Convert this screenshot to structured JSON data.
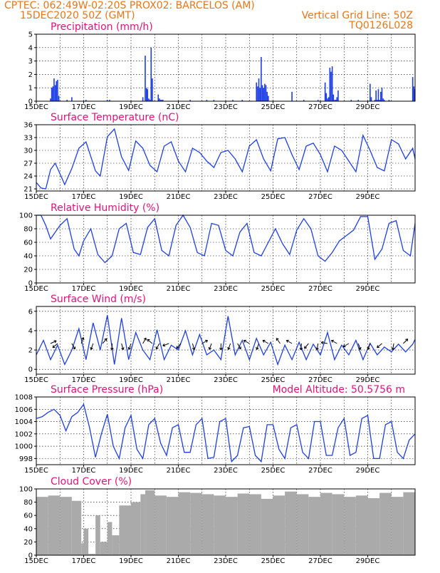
{
  "header": {
    "line1_left": "CPTEC:   062:49W-02:20S   PROX02: BARCELOS (AM)",
    "line2_left": "15DEC2020 50Z (GMT)",
    "line2_right": "Vertical Grid Line: 50Z",
    "line3_right": "TQ0126L028"
  },
  "x_ticks": [
    "15DEC",
    "17DEC",
    "19DEC",
    "21DEC",
    "23DEC",
    "25DEC",
    "27DEC",
    "29DEC"
  ],
  "colors": {
    "header": "#e8761a",
    "title": "#e0137a",
    "line": "#1f3fe6",
    "bars": "#1f3fe6",
    "cloud": "#aaaaaa",
    "arrow": "#000000"
  },
  "chart_data": [
    {
      "type": "bar",
      "title": "Precipitation (mm/h)",
      "ylim": [
        0,
        5
      ],
      "yticks": [
        "0",
        "1",
        "2",
        "3",
        "4",
        "5"
      ],
      "x_days": [
        0.6,
        0.65,
        0.7,
        0.75,
        0.8,
        0.85,
        0.9,
        0.95,
        1.3,
        1.5,
        2.1,
        3.0,
        3.1,
        4.5,
        4.6,
        4.65,
        4.7,
        4.75,
        4.8,
        4.85,
        4.9,
        5.15,
        5.2,
        5.25,
        5.3,
        5.35,
        6.5,
        7.2,
        7.5,
        8.3,
        8.7,
        9.3,
        9.35,
        9.4,
        9.45,
        9.5,
        9.55,
        9.6,
        9.65,
        9.7,
        9.75,
        9.8,
        10.8,
        11.3,
        11.9,
        12.2,
        12.25,
        12.3,
        12.35,
        12.4,
        12.45,
        12.5,
        12.55,
        12.6,
        12.65,
        12.7,
        12.75,
        13.3,
        13.6,
        14.1,
        14.15,
        14.3,
        14.35,
        14.4,
        14.45,
        14.5,
        14.55,
        14.6,
        14.65,
        14.7,
        14.9,
        15.9,
        15.95,
        15.98
      ],
      "values": [
        0.2,
        1.0,
        1.1,
        1.7,
        1.2,
        1.5,
        1.6,
        0.4,
        0.1,
        0.3,
        0.1,
        0.1,
        0.1,
        0.3,
        3.4,
        1.0,
        0.9,
        0.2,
        0.1,
        4.0,
        1.7,
        0.5,
        0.2,
        0.1,
        0.1,
        0.1,
        0.1,
        0.1,
        0.1,
        0.1,
        0.1,
        1.4,
        1.1,
        1.7,
        1.0,
        3.3,
        1.2,
        1.0,
        1.3,
        1.2,
        0.7,
        0.4,
        0.7,
        0.1,
        0.1,
        1.4,
        0.6,
        0.2,
        0.3,
        2.5,
        2.2,
        2.6,
        0.5,
        0.1,
        0.1,
        0.3,
        0.8,
        0.1,
        0.1,
        1.3,
        0.3,
        0.1,
        0.8,
        0.1,
        0.9,
        0.1,
        0.7,
        1.0,
        0.2,
        0.1,
        0.1,
        1.8,
        1.1,
        0.9
      ]
    },
    {
      "type": "line",
      "title": "Surface Temperature (nC)",
      "ylim": [
        20.5,
        36
      ],
      "yticks": [
        "21",
        "24",
        "27",
        "30",
        "33",
        "36"
      ],
      "x_days": [
        0,
        0.2,
        0.4,
        0.6,
        0.8,
        1.0,
        1.2,
        1.5,
        1.8,
        2.1,
        2.5,
        2.7,
        3.0,
        3.3,
        3.6,
        3.9,
        4.2,
        4.5,
        4.8,
        5.1,
        5.4,
        5.7,
        6.0,
        6.3,
        6.6,
        6.9,
        7.2,
        7.5,
        7.8,
        8.1,
        8.4,
        8.7,
        9.0,
        9.3,
        9.6,
        9.9,
        10.2,
        10.5,
        10.8,
        11.1,
        11.4,
        11.7,
        12.0,
        12.3,
        12.6,
        12.9,
        13.2,
        13.5,
        13.8,
        14.1,
        14.4,
        14.7,
        15.0,
        15.3,
        15.6,
        15.9,
        16.0
      ],
      "values": [
        22.5,
        21.2,
        21.0,
        25.5,
        27.0,
        24.5,
        22.0,
        25.8,
        30.5,
        32.0,
        25.2,
        24.0,
        33.2,
        35.0,
        28.5,
        25.3,
        32.2,
        30.5,
        26.5,
        25.0,
        31.0,
        32.0,
        27.5,
        25.0,
        30.5,
        29.5,
        27.5,
        26.0,
        29.5,
        30.0,
        28.0,
        25.0,
        31.0,
        32.5,
        28.0,
        25.2,
        32.7,
        33.0,
        29.0,
        25.5,
        31.0,
        31.7,
        29.0,
        25.0,
        31.0,
        30.0,
        27.5,
        25.0,
        33.5,
        30.0,
        26.0,
        25.2,
        32.5,
        31.5,
        28.0,
        30.5,
        28.0
      ]
    },
    {
      "type": "line",
      "title": "Relative Humidity (%)",
      "ylim": [
        0,
        100
      ],
      "yticks": [
        "0",
        "20",
        "40",
        "60",
        "80",
        "100"
      ],
      "x_days": [
        0,
        0.2,
        0.4,
        0.6,
        0.8,
        1.0,
        1.3,
        1.6,
        1.8,
        2.0,
        2.3,
        2.6,
        2.9,
        3.2,
        3.5,
        3.8,
        4.1,
        4.4,
        4.7,
        5.0,
        5.3,
        5.6,
        5.9,
        6.2,
        6.5,
        6.8,
        7.1,
        7.4,
        7.7,
        8.0,
        8.3,
        8.6,
        8.9,
        9.2,
        9.5,
        9.8,
        10.1,
        10.4,
        10.7,
        11.0,
        11.3,
        11.6,
        11.9,
        12.2,
        12.5,
        12.8,
        13.1,
        13.4,
        13.7,
        14.0,
        14.3,
        14.6,
        14.9,
        15.2,
        15.5,
        15.8,
        16.0
      ],
      "values": [
        100,
        100,
        85,
        65,
        75,
        85,
        95,
        50,
        40,
        62,
        80,
        42,
        30,
        40,
        80,
        88,
        45,
        42,
        82,
        95,
        48,
        40,
        85,
        100,
        82,
        45,
        40,
        88,
        85,
        48,
        40,
        75,
        88,
        45,
        40,
        60,
        80,
        58,
        42,
        78,
        95,
        80,
        40,
        32,
        45,
        62,
        70,
        78,
        98,
        98,
        35,
        50,
        88,
        92,
        48,
        40,
        88
      ]
    },
    {
      "type": "line",
      "title": "Surface Wind (m/s)",
      "ylim": [
        -0.5,
        6.5
      ],
      "yticks": [
        "0",
        "2",
        "4",
        "6"
      ],
      "x_days": [
        0,
        0.3,
        0.6,
        0.9,
        1.2,
        1.5,
        1.8,
        2.1,
        2.4,
        2.7,
        3.0,
        3.3,
        3.6,
        3.9,
        4.2,
        4.5,
        4.8,
        5.1,
        5.4,
        5.7,
        6.0,
        6.3,
        6.6,
        6.9,
        7.2,
        7.5,
        7.8,
        8.1,
        8.4,
        8.7,
        9.0,
        9.3,
        9.6,
        9.9,
        10.2,
        10.5,
        10.8,
        11.1,
        11.4,
        11.7,
        12.0,
        12.3,
        12.6,
        12.9,
        13.2,
        13.5,
        13.8,
        14.1,
        14.4,
        14.7,
        15.0,
        15.3,
        15.6,
        15.9,
        16.0
      ],
      "values": [
        1.5,
        3.0,
        1.0,
        2.5,
        0.5,
        2.0,
        4.2,
        1.0,
        4.8,
        2.0,
        5.6,
        0.5,
        5.3,
        1.0,
        3.8,
        2.0,
        1.0,
        4.1,
        1.0,
        2.5,
        2.0,
        4.0,
        1.5,
        3.6,
        1.5,
        2.0,
        1.0,
        5.5,
        1.5,
        3.0,
        1.0,
        3.2,
        1.5,
        2.8,
        0.5,
        2.5,
        1.0,
        2.8,
        1.0,
        2.6,
        1.5,
        3.8,
        1.0,
        2.5,
        1.5,
        3.0,
        1.0,
        2.7,
        1.5,
        2.3,
        1.8,
        2.6,
        1.8,
        2.6,
        3.1
      ],
      "vector_arrows": [
        {
          "x": 0.6,
          "dir": 65
        },
        {
          "x": 0.9,
          "dir": 230
        },
        {
          "x": 1.5,
          "dir": 150
        },
        {
          "x": 1.9,
          "dir": 20
        },
        {
          "x": 2.4,
          "dir": 200
        },
        {
          "x": 2.8,
          "dir": 40
        },
        {
          "x": 3.2,
          "dir": 180
        },
        {
          "x": 3.6,
          "dir": 165
        },
        {
          "x": 4.0,
          "dir": 200
        },
        {
          "x": 4.5,
          "dir": 30
        },
        {
          "x": 4.9,
          "dir": 310
        },
        {
          "x": 5.2,
          "dir": 210
        },
        {
          "x": 5.6,
          "dir": 250
        },
        {
          "x": 6.1,
          "dir": 220
        },
        {
          "x": 6.6,
          "dir": 165
        },
        {
          "x": 7.0,
          "dir": 60
        },
        {
          "x": 7.4,
          "dir": 200
        },
        {
          "x": 7.8,
          "dir": 180
        },
        {
          "x": 8.2,
          "dir": 200
        },
        {
          "x": 8.5,
          "dir": 150
        },
        {
          "x": 9.0,
          "dir": 300
        },
        {
          "x": 9.4,
          "dir": 200
        },
        {
          "x": 9.8,
          "dir": 300
        },
        {
          "x": 10.3,
          "dir": 325
        },
        {
          "x": 10.8,
          "dir": 300
        },
        {
          "x": 11.2,
          "dir": 185
        },
        {
          "x": 11.5,
          "dir": 220
        },
        {
          "x": 11.9,
          "dir": 190
        },
        {
          "x": 12.3,
          "dir": 280
        },
        {
          "x": 12.7,
          "dir": 300
        },
        {
          "x": 13.2,
          "dir": 240
        },
        {
          "x": 13.6,
          "dir": 160
        },
        {
          "x": 14.1,
          "dir": 200
        },
        {
          "x": 14.6,
          "dir": 230
        },
        {
          "x": 15.1,
          "dir": 190
        },
        {
          "x": 15.5,
          "dir": 45
        }
      ]
    },
    {
      "type": "line",
      "title": "Surface Pressure (hPa)",
      "annotation": "Model Altitude: 50.5756 m",
      "ylim": [
        997,
        1008
      ],
      "yticks": [
        "998",
        "1000",
        "1002",
        "1004",
        "1006",
        "1008"
      ],
      "x_days": [
        0,
        0.25,
        0.5,
        0.75,
        1.0,
        1.25,
        1.5,
        1.75,
        2.0,
        2.25,
        2.5,
        2.75,
        3.0,
        3.25,
        3.5,
        3.75,
        4.0,
        4.25,
        4.5,
        4.75,
        5.0,
        5.25,
        5.5,
        5.75,
        6.0,
        6.25,
        6.5,
        6.75,
        7.0,
        7.25,
        7.5,
        7.75,
        8.0,
        8.25,
        8.5,
        8.75,
        9.0,
        9.25,
        9.5,
        9.75,
        10.0,
        10.25,
        10.5,
        10.75,
        11.0,
        11.25,
        11.5,
        11.75,
        12.0,
        12.25,
        12.5,
        12.75,
        13.0,
        13.25,
        13.5,
        13.75,
        14.0,
        14.25,
        14.5,
        14.75,
        15.0,
        15.25,
        15.5,
        15.75,
        16.0
      ],
      "values": [
        1004.5,
        1004.8,
        1005.5,
        1006.0,
        1005.0,
        1002.5,
        1004.8,
        1005.5,
        1006.8,
        1003.0,
        998.2,
        1002.0,
        1005.2,
        1000.0,
        998.0,
        1003.0,
        1005.0,
        999.5,
        998.0,
        1003.5,
        1004.5,
        1000.5,
        998.5,
        1003.0,
        1003.5,
        999.0,
        999.0,
        1003.5,
        1004.5,
        998.0,
        998.2,
        1004.0,
        1004.5,
        997.5,
        998.5,
        1003.0,
        1003.2,
        998.5,
        997.5,
        1003.5,
        1003.5,
        999.5,
        998.0,
        1003.0,
        1003.5,
        999.0,
        998.0,
        1004.0,
        1004.0,
        998.5,
        998.5,
        1003.0,
        1004.5,
        998.5,
        999.0,
        1004.5,
        1005.0,
        998.0,
        998.0,
        1003.5,
        1004.0,
        999.0,
        998.0,
        1001.0,
        1002.0
      ]
    },
    {
      "type": "bar",
      "title": "Cloud Cover (%)",
      "ylim": [
        0,
        100
      ],
      "yticks": [
        "0",
        "20",
        "40",
        "60",
        "80",
        "100"
      ],
      "x_days": [
        0,
        0.5,
        1.0,
        1.5,
        1.9,
        2.0,
        2.2,
        2.5,
        2.7,
        3.0,
        3.2,
        3.5,
        4.0,
        4.4,
        4.6,
        5.0,
        5.5,
        6.0,
        6.5,
        7.0,
        7.5,
        8.0,
        8.5,
        9.0,
        9.5,
        10.0,
        10.5,
        11.0,
        11.5,
        12.0,
        12.5,
        13.0,
        13.5,
        14.0,
        14.5,
        15.0,
        15.5,
        16.0
      ],
      "values": [
        88,
        90,
        88,
        82,
        18,
        40,
        2,
        60,
        20,
        50,
        30,
        75,
        80,
        92,
        98,
        90,
        88,
        95,
        94,
        92,
        90,
        88,
        93,
        92,
        85,
        90,
        96,
        92,
        88,
        94,
        92,
        88,
        90,
        86,
        94,
        88,
        95,
        92
      ]
    }
  ]
}
